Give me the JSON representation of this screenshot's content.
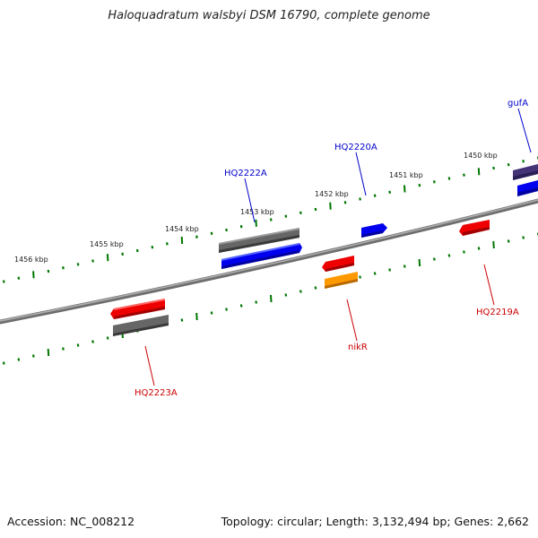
{
  "title": "Haloquadratum walsbyi DSM 16790, complete genome",
  "footer": {
    "accession": "Accession: NC_008212",
    "summary": "Topology: circular; Length: 3,132,494 bp; Genes: 2,662"
  },
  "scale_labels": [
    "1456 kbp",
    "1455 kbp",
    "1454 kbp",
    "1453 kbp",
    "1452 kbp",
    "1451 kbp",
    "1450 kbp"
  ],
  "gene_labels": {
    "gufA": "gufA",
    "HQ2222A": "HQ2222A",
    "HQ2220A": "HQ2220A",
    "HQ2219A": "HQ2219A",
    "nikR": "nikR",
    "HQ2223A": "HQ2223A"
  },
  "colors": {
    "forward_cds": "#0000ee",
    "reverse_cds": "#ee0000",
    "gray_feature": "#666666",
    "purple_feature": "#443377",
    "orange_feature": "#ff9900",
    "backbone": "#808080",
    "ticks": "#007700",
    "label_forward": "#0000cc",
    "label_reverse": "#cc0000"
  }
}
